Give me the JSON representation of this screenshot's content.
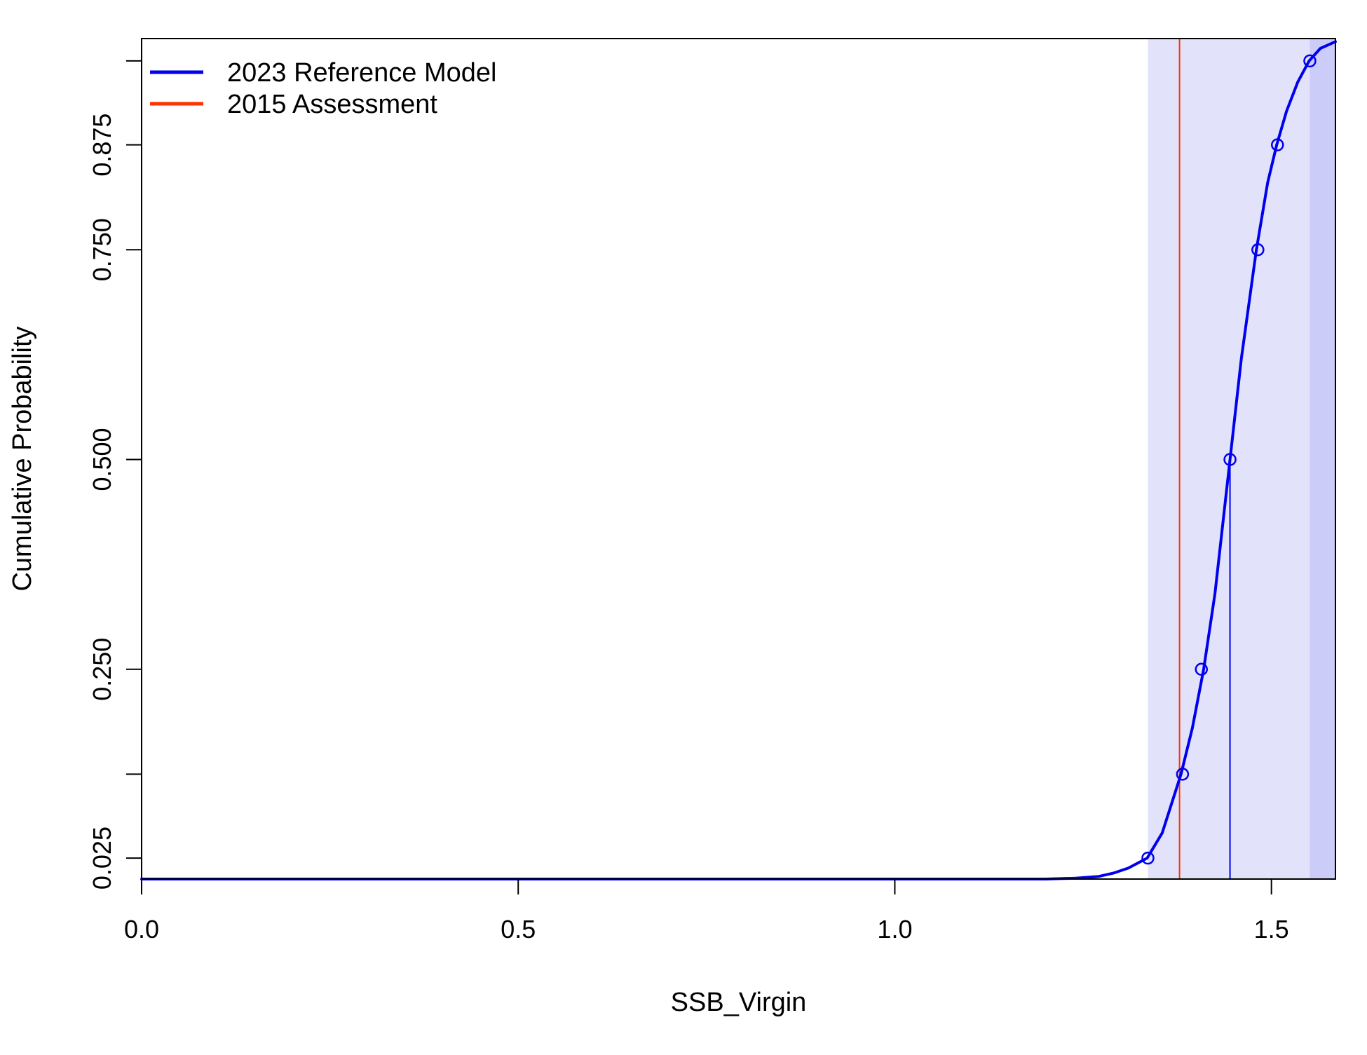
{
  "chart_data": {
    "type": "line",
    "xlabel": "SSB_Virgin",
    "ylabel": "Cumulative Probability",
    "xlim": [
      0.0,
      1.585
    ],
    "ylim": [
      0.0,
      1.0
    ],
    "x_ticks": [
      0.0,
      0.5,
      1.0,
      1.5
    ],
    "x_tick_labels": [
      "0.0",
      "0.5",
      "1.0",
      "1.5"
    ],
    "y_ticks": [
      0.025,
      0.125,
      0.25,
      0.5,
      0.75,
      0.875,
      0.975
    ],
    "y_tick_labels": [
      "0.025",
      "",
      "0.250",
      "0.500",
      "0.750",
      "0.875",
      ""
    ],
    "grid": false,
    "legend_position": "top-left",
    "legend": [
      {
        "label": "2023 Reference Model",
        "color": "#0000EE"
      },
      {
        "label": "2015 Assessment",
        "color": "#FF3300"
      }
    ],
    "series": [
      {
        "name": "2023 Reference Model",
        "color": "#0000EE",
        "x": [
          0.0,
          1.2,
          1.24,
          1.27,
          1.29,
          1.31,
          1.335,
          1.355,
          1.38,
          1.395,
          1.41,
          1.425,
          1.445,
          1.46,
          1.48,
          1.495,
          1.507,
          1.52,
          1.535,
          1.55,
          1.565,
          1.585
        ],
        "y": [
          0.0,
          0.0,
          0.001,
          0.003,
          0.007,
          0.013,
          0.025,
          0.055,
          0.125,
          0.18,
          0.25,
          0.34,
          0.5,
          0.62,
          0.75,
          0.83,
          0.875,
          0.915,
          0.95,
          0.975,
          0.99,
          0.998
        ]
      }
    ],
    "quantile_points": {
      "x": [
        1.336,
        1.382,
        1.407,
        1.445,
        1.482,
        1.508,
        1.551
      ],
      "y": [
        0.025,
        0.125,
        0.25,
        0.5,
        0.75,
        0.875,
        0.975
      ]
    },
    "reference_lines": [
      {
        "name": "2015 Assessment",
        "x": 1.378,
        "color": "#FF3300"
      },
      {
        "name": "median",
        "x": 1.445,
        "y_to": 0.5,
        "color": "#0000EE"
      }
    ],
    "shaded_bands": [
      {
        "x_from": 1.336,
        "x_to": 1.551,
        "color": "#E2E2FA"
      },
      {
        "x_from": 1.551,
        "x_to": 1.585,
        "color": "#CCCCF8"
      }
    ]
  }
}
